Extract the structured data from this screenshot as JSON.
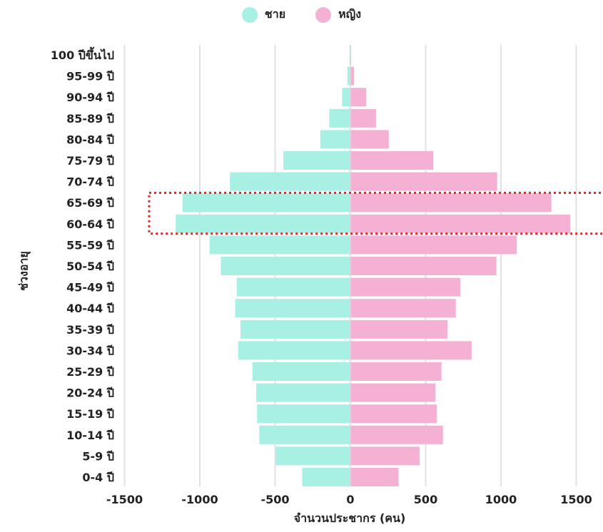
{
  "chart_data": {
    "type": "bar",
    "orientation": "horizontal",
    "title": "",
    "xlabel": "จำนวนประชากร (คน)",
    "ylabel": "ช่วงอายุ",
    "xlim": [
      -1500,
      1600
    ],
    "xticks": [
      -1500,
      -1000,
      -500,
      0,
      500,
      1000,
      1500
    ],
    "xtick_labels": [
      "-1500",
      "-1000",
      "-500",
      "0",
      "500",
      "1000",
      "1500"
    ],
    "grid": "vertical",
    "legend_position": "top",
    "categories": [
      "100 ปีขึ้นไป",
      "95-99 ปี",
      "90-94 ปี",
      "85-89 ปี",
      "80-84 ปี",
      "75-79 ปี",
      "70-74 ปี",
      "65-69 ปี",
      "60-64 ปี",
      "55-59 ปี",
      "50-54 ปี",
      "45-49 ปี",
      "40-44 ปี",
      "35-39 ปี",
      "30-34 ปี",
      "25-29 ปี",
      "20-24 ปี",
      "15-19 ปี",
      "10-14 ปี",
      "5-9 ปี",
      "0-4 ปี"
    ],
    "series": [
      {
        "name": "ชาย",
        "color": "#a8efe4",
        "values": [
          -5,
          -20,
          -55,
          -140,
          -200,
          -445,
          -800,
          -1115,
          -1160,
          -935,
          -860,
          -755,
          -765,
          -730,
          -745,
          -650,
          -625,
          -620,
          -605,
          -495,
          -320
        ]
      },
      {
        "name": "หญิง",
        "color": "#f5b1d3",
        "values": [
          5,
          25,
          105,
          170,
          255,
          550,
          975,
          1335,
          1460,
          1105,
          970,
          730,
          700,
          645,
          805,
          605,
          565,
          575,
          615,
          460,
          320
        ]
      }
    ],
    "highlight": {
      "categories": [
        "65-69 ปี",
        "60-64 ปี"
      ],
      "style": "dotted",
      "color": "#d42b2b"
    }
  }
}
